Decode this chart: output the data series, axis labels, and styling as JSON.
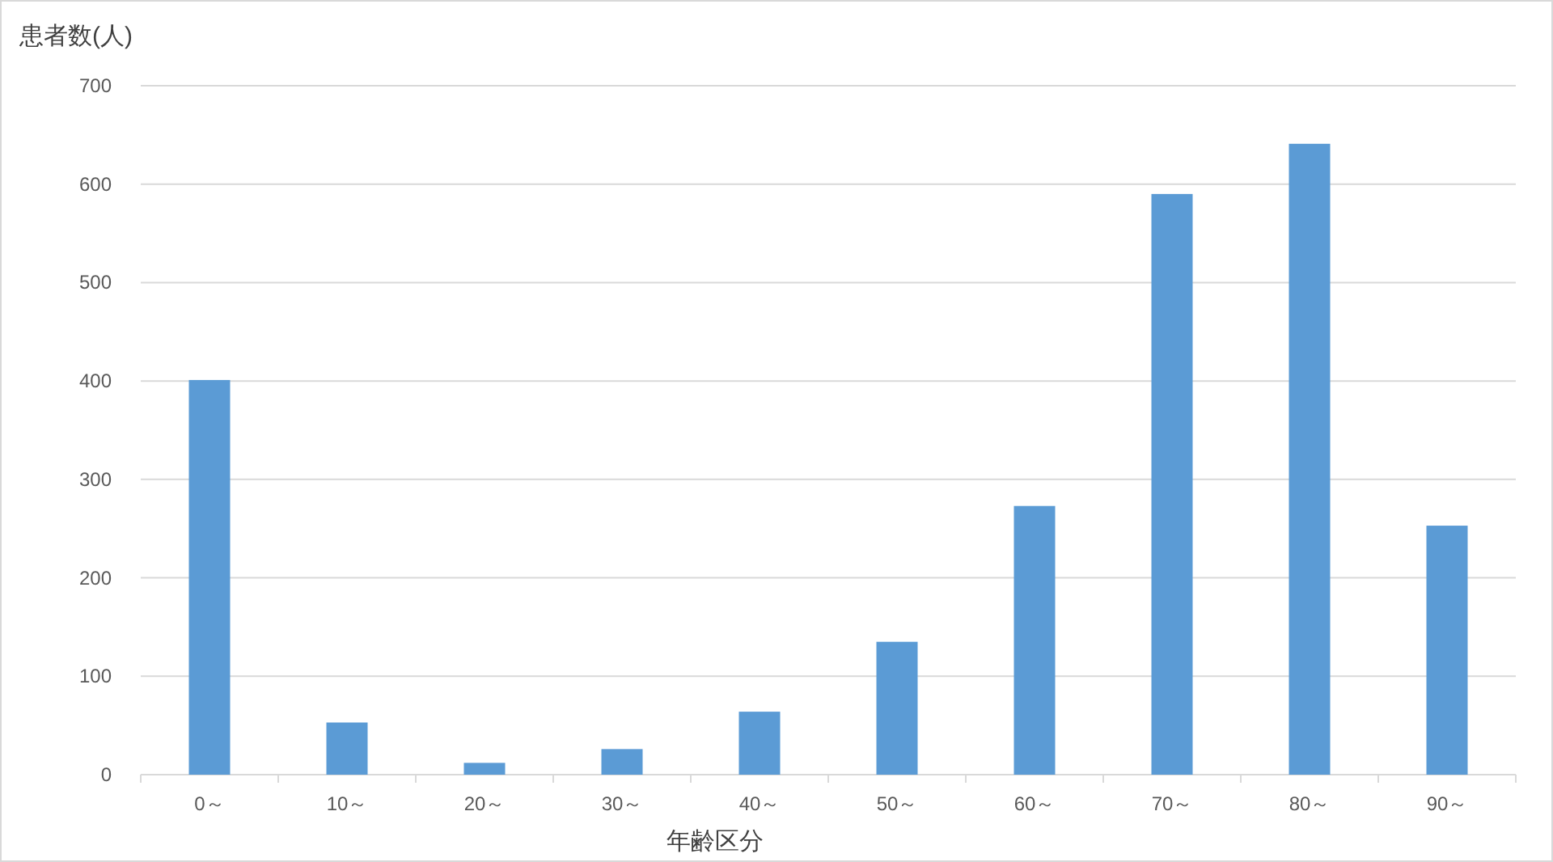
{
  "chart_data": {
    "type": "bar",
    "xlabel": "年齢区分",
    "ylabel": "患者数(人)",
    "categories": [
      "0～",
      "10～",
      "20～",
      "30～",
      "40～",
      "50～",
      "60～",
      "70～",
      "80～",
      "90～"
    ],
    "values": [
      401,
      53,
      12,
      26,
      64,
      135,
      273,
      590,
      641,
      253
    ],
    "color": "#5b9bd5",
    "ylim": [
      0,
      700
    ],
    "yticks": [
      0,
      100,
      200,
      300,
      400,
      500,
      600,
      700
    ],
    "grid": "y"
  }
}
